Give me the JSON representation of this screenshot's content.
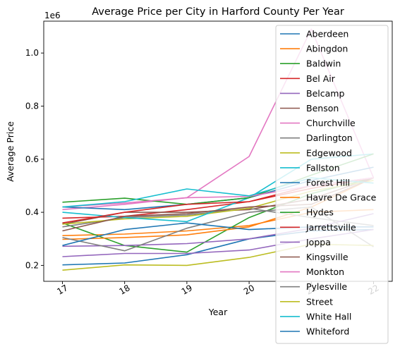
{
  "chart_data": {
    "type": "line",
    "title": "Average Price per City in Harford County Per Year",
    "xlabel": "Year",
    "ylabel": "Average Price",
    "y_offset_label": "1e6",
    "x": [
      17,
      18,
      19,
      20,
      21,
      22
    ],
    "x_tick_labels": [
      "17",
      "18",
      "19",
      "20",
      "21",
      "22"
    ],
    "xlim": [
      16.7,
      22.3
    ],
    "y_ticks": [
      0.2,
      0.4,
      0.6,
      0.8,
      1.0
    ],
    "y_tick_labels": [
      "0.2",
      "0.4",
      "0.6",
      "0.8",
      "1.0"
    ],
    "ylim": [
      0.14,
      1.12
    ],
    "grid": false,
    "legend_position": "upper right",
    "series": [
      {
        "name": "Aberdeen",
        "color": "#1f77b4",
        "values": [
          0.202,
          0.209,
          0.24,
          0.3,
          0.33,
          0.335
        ]
      },
      {
        "name": "Abingdon",
        "color": "#ff7f0e",
        "values": [
          0.312,
          0.318,
          0.33,
          0.35,
          0.4,
          0.41
        ]
      },
      {
        "name": "Baldwin",
        "color": "#2ca02c",
        "values": [
          0.36,
          0.275,
          0.25,
          0.38,
          0.47,
          0.53
        ]
      },
      {
        "name": "Bel Air",
        "color": "#d62728",
        "values": [
          0.378,
          0.385,
          0.41,
          0.44,
          0.49,
          0.53
        ]
      },
      {
        "name": "Belcamp",
        "color": "#9467bd",
        "values": [
          0.233,
          0.245,
          0.245,
          0.258,
          0.3,
          0.335
        ]
      },
      {
        "name": "Benson",
        "color": "#8c564b",
        "values": [
          0.355,
          0.4,
          0.4,
          0.41,
          0.45,
          0.53
        ]
      },
      {
        "name": "Churchville",
        "color": "#e377c2",
        "values": [
          0.41,
          0.43,
          0.455,
          0.61,
          1.09,
          0.53
        ]
      },
      {
        "name": "Darlington",
        "color": "#7f7f7f",
        "values": [
          0.345,
          0.38,
          0.39,
          0.415,
          0.38,
          0.35
        ]
      },
      {
        "name": "Edgewood",
        "color": "#bcbd22",
        "values": [
          0.355,
          0.375,
          0.385,
          0.415,
          0.48,
          0.52
        ]
      },
      {
        "name": "Fallston",
        "color": "#17becf",
        "values": [
          0.4,
          0.38,
          0.365,
          0.455,
          0.6,
          0.62
        ]
      },
      {
        "name": "Forest Hill",
        "color": "#1f77b4",
        "values": [
          0.42,
          0.41,
          0.43,
          0.455,
          0.52,
          0.57
        ]
      },
      {
        "name": "Havre De Grace",
        "color": "#ff7f0e",
        "values": [
          0.298,
          0.305,
          0.315,
          0.345,
          0.42,
          0.53
        ]
      },
      {
        "name": "Hydes",
        "color": "#2ca02c",
        "values": [
          0.438,
          0.453,
          0.43,
          0.455,
          0.54,
          0.62
        ]
      },
      {
        "name": "Jarrettsville",
        "color": "#d62728",
        "values": [
          0.36,
          0.4,
          0.43,
          0.44,
          0.5,
          0.53
        ]
      },
      {
        "name": "Joppa",
        "color": "#9467bd",
        "values": [
          0.272,
          0.275,
          0.282,
          0.3,
          0.34,
          0.395
        ]
      },
      {
        "name": "Kingsville",
        "color": "#8c564b",
        "values": [
          0.33,
          0.385,
          0.395,
          0.42,
          0.43,
          0.53
        ]
      },
      {
        "name": "Monkton",
        "color": "#e377c2",
        "values": [
          0.42,
          0.435,
          0.455,
          0.46,
          0.5,
          0.53
        ]
      },
      {
        "name": "Pylesville",
        "color": "#7f7f7f",
        "values": [
          0.305,
          0.255,
          0.34,
          0.4,
          0.42,
          0.27
        ]
      },
      {
        "name": "Street",
        "color": "#bcbd22",
        "values": [
          0.182,
          0.202,
          0.2,
          0.23,
          0.28,
          0.275
        ]
      },
      {
        "name": "White Hall",
        "color": "#17becf",
        "values": [
          0.42,
          0.44,
          0.488,
          0.462,
          0.53,
          0.51
        ]
      },
      {
        "name": "Whiteford",
        "color": "#1f77b4",
        "values": [
          0.275,
          0.335,
          0.36,
          0.335,
          0.345,
          0.345
        ]
      }
    ]
  }
}
